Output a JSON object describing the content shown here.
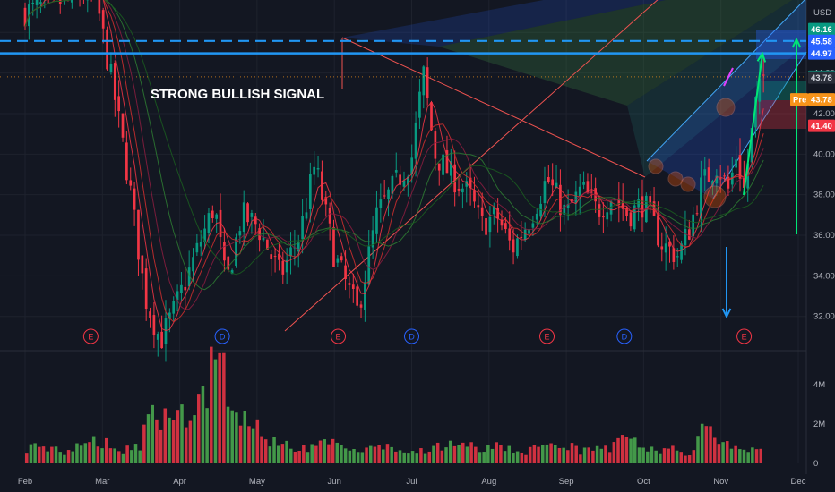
{
  "chart_data": {
    "type": "candlestick",
    "currency": "USD",
    "y_range": [
      30.4,
      47.6
    ],
    "y_ticks": [
      32,
      34,
      36,
      38,
      40,
      42,
      44,
      46
    ],
    "y_tick_labels": [
      "32.00",
      "34.00",
      "36.00",
      "38.00",
      "40.00",
      "42.00",
      "44.00",
      "46.00"
    ],
    "x_labels": [
      "Feb",
      "Mar",
      "Apr",
      "May",
      "Jun",
      "Jul",
      "Aug",
      "Sep",
      "Oct",
      "Nov",
      "Dec"
    ],
    "volume_ticks": [
      "0",
      "2M",
      "4M"
    ],
    "price_tags": [
      {
        "value": 46.16,
        "label": "46.16",
        "color": "#089981",
        "text_color": "#ffffff"
      },
      {
        "value": 45.58,
        "label": "45.58",
        "color": "#2962ff",
        "text_color": "#ffffff"
      },
      {
        "value": 44.97,
        "label": "44.97",
        "color": "#2962ff",
        "text_color": "#ffffff"
      },
      {
        "value": 43.81,
        "label": "43.81",
        "color": "#089981",
        "text_color": "#ffffff"
      },
      {
        "value": 43.78,
        "label": "43.78",
        "color": "#2a2e39",
        "text_color": "#d1d4dc"
      },
      {
        "value": 42.7,
        "label": "43.78",
        "prefix": "Pre",
        "color": "#f7931a",
        "text_color": "#ffffff"
      },
      {
        "value": 41.4,
        "label": "41.40",
        "color": "#f23645",
        "text_color": "#ffffff"
      }
    ],
    "annotation": "STRONG BULLISH SIGNAL",
    "events": [
      {
        "label": "E",
        "month": 0.85,
        "color": "#f23645"
      },
      {
        "label": "D",
        "month": 2.55,
        "color": "#2962ff"
      },
      {
        "label": "E",
        "month": 4.05,
        "color": "#f23645"
      },
      {
        "label": "D",
        "month": 5.0,
        "color": "#2962ff"
      },
      {
        "label": "E",
        "month": 6.75,
        "color": "#f23645"
      },
      {
        "label": "D",
        "month": 7.75,
        "color": "#2962ff"
      },
      {
        "label": "E",
        "month": 9.3,
        "color": "#f23645"
      }
    ],
    "key_prices": [
      {
        "month": 0.0,
        "price": 47.0
      },
      {
        "month": 0.9,
        "price": 48.0
      },
      {
        "month": 1.15,
        "price": 43.0
      },
      {
        "month": 1.35,
        "price": 38.5
      },
      {
        "month": 1.55,
        "price": 33.0
      },
      {
        "month": 1.75,
        "price": 30.8
      },
      {
        "month": 1.95,
        "price": 32.5
      },
      {
        "month": 2.2,
        "price": 35.0
      },
      {
        "month": 2.45,
        "price": 37.5
      },
      {
        "month": 2.6,
        "price": 33.5
      },
      {
        "month": 2.8,
        "price": 37.0
      },
      {
        "month": 3.0,
        "price": 36.5
      },
      {
        "month": 3.3,
        "price": 34.0
      },
      {
        "month": 3.55,
        "price": 36.0
      },
      {
        "month": 3.75,
        "price": 39.5
      },
      {
        "month": 4.0,
        "price": 35.0
      },
      {
        "month": 4.3,
        "price": 32.2
      },
      {
        "month": 4.55,
        "price": 37.0
      },
      {
        "month": 4.8,
        "price": 38.6
      },
      {
        "month": 5.0,
        "price": 39.8
      },
      {
        "month": 5.15,
        "price": 44.0
      },
      {
        "month": 5.3,
        "price": 40.0
      },
      {
        "month": 5.5,
        "price": 39.0
      },
      {
        "month": 5.75,
        "price": 38.0
      },
      {
        "month": 5.9,
        "price": 36.5
      },
      {
        "month": 6.1,
        "price": 37.0
      },
      {
        "month": 6.3,
        "price": 35.3
      },
      {
        "month": 6.55,
        "price": 37.0
      },
      {
        "month": 6.75,
        "price": 38.8
      },
      {
        "month": 7.0,
        "price": 37.0
      },
      {
        "month": 7.2,
        "price": 38.3
      },
      {
        "month": 7.4,
        "price": 37.2
      },
      {
        "month": 7.6,
        "price": 38.0
      },
      {
        "month": 7.8,
        "price": 37.0
      },
      {
        "month": 8.0,
        "price": 37.6
      },
      {
        "month": 8.25,
        "price": 35.5
      },
      {
        "month": 8.45,
        "price": 35.0
      },
      {
        "month": 8.6,
        "price": 36.4
      },
      {
        "month": 8.75,
        "price": 38.5
      },
      {
        "month": 8.95,
        "price": 39.5
      },
      {
        "month": 9.1,
        "price": 38.2
      },
      {
        "month": 9.2,
        "price": 40.0
      },
      {
        "month": 9.3,
        "price": 38.2
      },
      {
        "month": 9.45,
        "price": 42.5
      },
      {
        "month": 9.55,
        "price": 43.8
      }
    ],
    "volume_millions": [
      0.9,
      0.8,
      0.6,
      1.0,
      1.2,
      0.7,
      0.9,
      2.5,
      2.8,
      3.0,
      3.5,
      5.3,
      2.7,
      2.3,
      1.4,
      1.1,
      0.9,
      1.1,
      1.2,
      0.7,
      0.8,
      0.9,
      0.6,
      0.8,
      0.9,
      1.0,
      0.9,
      0.8,
      0.9,
      0.7,
      0.8,
      0.9,
      1.0,
      0.7,
      0.8,
      1.3,
      1.1,
      0.8,
      0.9,
      0.6,
      1.8,
      1.1,
      1.0,
      0.8
    ],
    "x_domain_months": [
      0,
      10.6
    ]
  }
}
